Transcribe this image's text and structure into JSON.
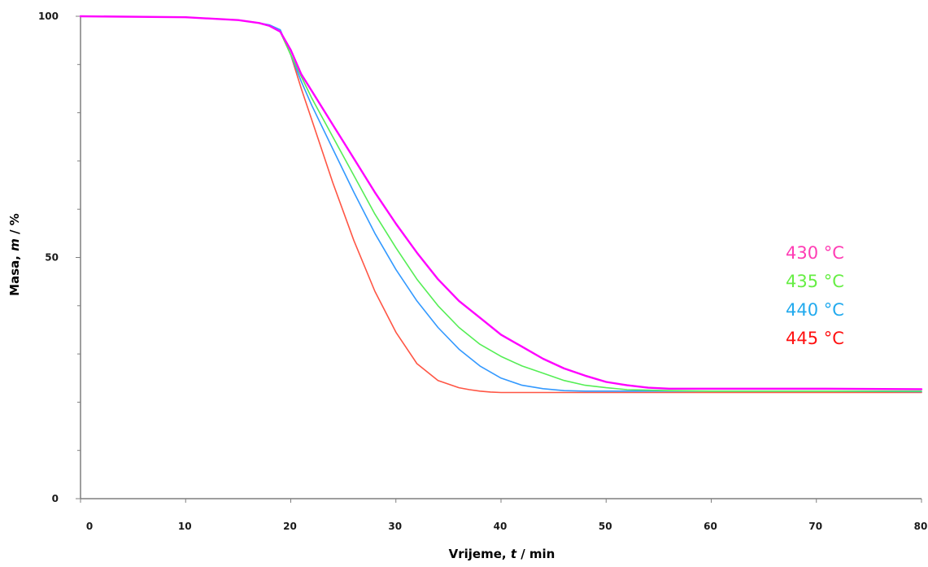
{
  "chart_data": {
    "type": "line",
    "title": "",
    "xlabel": "Vrijeme, t / min",
    "xlabel_parts": [
      "Vrijeme, ",
      "t",
      " / min"
    ],
    "ylabel": "Masa, m / %",
    "ylabel_parts": [
      "Masa, ",
      "m",
      " / %"
    ],
    "xlim": [
      0,
      80
    ],
    "ylim": [
      0,
      100
    ],
    "x_ticks": [
      0,
      10,
      20,
      30,
      40,
      50,
      60,
      70,
      80
    ],
    "y_ticks": [
      0,
      50,
      100
    ],
    "y_minor_step": 10,
    "grid": false,
    "legend_position": "right",
    "series": [
      {
        "name": "430 °C",
        "color": "#ff00ff",
        "legend_color": "#ff3cb4",
        "x": [
          0,
          10,
          15,
          17,
          18,
          19,
          20,
          21,
          22,
          24,
          26,
          28,
          30,
          32,
          34,
          36,
          38,
          40,
          42,
          44,
          46,
          48,
          50,
          52,
          54,
          56,
          60,
          70,
          80
        ],
        "y": [
          100,
          99.8,
          99.2,
          98.6,
          98,
          96.8,
          93,
          88,
          84.5,
          77.5,
          70.5,
          63.5,
          57,
          51,
          45.5,
          41,
          37.5,
          34,
          31.5,
          29,
          27,
          25.5,
          24.2,
          23.5,
          23,
          22.8,
          22.8,
          22.8,
          22.7
        ]
      },
      {
        "name": "435 °C",
        "color": "#55ee55",
        "legend_color": "#66ee44",
        "x": [
          0,
          10,
          15,
          17,
          18,
          19,
          20,
          21,
          22,
          24,
          26,
          28,
          30,
          32,
          34,
          36,
          38,
          40,
          42,
          44,
          46,
          48,
          50,
          52,
          54,
          56,
          60,
          70,
          80
        ],
        "y": [
          100,
          99.8,
          99.2,
          98.6,
          98,
          96.8,
          92,
          87.5,
          83,
          75,
          67,
          59,
          52,
          45.5,
          40,
          35.5,
          32,
          29.5,
          27.5,
          26,
          24.5,
          23.5,
          23,
          22.6,
          22.5,
          22.4,
          22.3,
          22.3,
          22.3
        ]
      },
      {
        "name": "440 °C",
        "color": "#3399ff",
        "legend_color": "#22aaee",
        "x": [
          0,
          10,
          15,
          17,
          18,
          19,
          20,
          21,
          22,
          24,
          26,
          28,
          30,
          32,
          34,
          36,
          38,
          40,
          42,
          44,
          46,
          48,
          50,
          55,
          60,
          70,
          80
        ],
        "y": [
          100,
          99.8,
          99.2,
          98.6,
          98.2,
          97.2,
          92,
          86.5,
          81.5,
          72.5,
          63.5,
          55,
          47.5,
          41,
          35.5,
          31,
          27.5,
          25,
          23.5,
          22.8,
          22.4,
          22.3,
          22.3,
          22.3,
          22.3,
          22.3,
          22.2
        ]
      },
      {
        "name": "445 °C",
        "color": "#ff5544",
        "legend_color": "#ff1111",
        "x": [
          0,
          10,
          15,
          17,
          18,
          19,
          20,
          21,
          22,
          23,
          24,
          26,
          28,
          30,
          32,
          34,
          36,
          37,
          38,
          39,
          40,
          45,
          50,
          60,
          70,
          80
        ],
        "y": [
          100,
          99.8,
          99.2,
          98.6,
          98,
          96.8,
          92,
          85,
          78.5,
          72,
          65.5,
          53.5,
          43,
          34.5,
          28,
          24.5,
          23,
          22.6,
          22.3,
          22.1,
          22,
          22,
          22,
          22,
          22,
          22
        ]
      }
    ]
  }
}
